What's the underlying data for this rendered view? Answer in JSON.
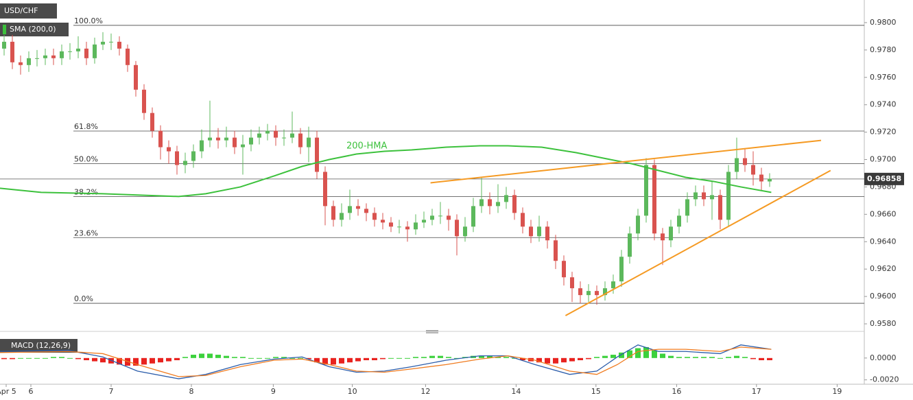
{
  "chart_data": {
    "type": "candlestick",
    "title": "USD/CHF",
    "indicator_label": "SMA (200,0)",
    "up_color": "#5cb85c",
    "down_color": "#d9534f",
    "xlim": [
      -0.5,
      104.5
    ],
    "xticks": [
      {
        "value": 0.25,
        "label": "Apr 5"
      },
      {
        "value": 3.25,
        "label": "6"
      },
      {
        "value": 13,
        "label": "7"
      },
      {
        "value": 22.75,
        "label": "8"
      },
      {
        "value": 32.7,
        "label": "9"
      },
      {
        "value": 42.3,
        "label": "10"
      },
      {
        "value": 51.2,
        "label": "12"
      },
      {
        "value": 62.2,
        "label": "14"
      },
      {
        "value": 71.9,
        "label": "15"
      },
      {
        "value": 81.7,
        "label": "16"
      },
      {
        "value": 91.4,
        "label": "17"
      },
      {
        "value": 101.2,
        "label": "19"
      }
    ],
    "ylim": [
      0.9576,
      0.98165
    ],
    "yticks": [
      {
        "value": 0.958,
        "label": "0.9580"
      },
      {
        "value": 0.96,
        "label": "0.9600"
      },
      {
        "value": 0.962,
        "label": "0.9620"
      },
      {
        "value": 0.964,
        "label": "0.9640"
      },
      {
        "value": 0.966,
        "label": "0.9660"
      },
      {
        "value": 0.968,
        "label": "0.9680"
      },
      {
        "value": 0.97,
        "label": "0.9700"
      },
      {
        "value": 0.972,
        "label": "0.9720"
      },
      {
        "value": 0.974,
        "label": "0.9740"
      },
      {
        "value": 0.976,
        "label": "0.9760"
      },
      {
        "value": 0.978,
        "label": "0.9780"
      },
      {
        "value": 0.98,
        "label": "0.9800"
      }
    ],
    "last_price": 0.96858,
    "fib_levels": [
      {
        "label": "100.0%",
        "value": 0.9798
      },
      {
        "label": "61.8%",
        "value": 0.97208
      },
      {
        "label": "50.0%",
        "value": 0.9697
      },
      {
        "label": "38.2%",
        "value": 0.9673
      },
      {
        "label": "23.6%",
        "value": 0.9643
      },
      {
        "label": "0.0%",
        "value": 0.9595
      }
    ],
    "candles": [
      [
        0.9781,
        0.9791,
        0.9776,
        0.9786
      ],
      [
        0.9786,
        0.9791,
        0.9766,
        0.9771
      ],
      [
        0.9771,
        0.9776,
        0.9762,
        0.9769
      ],
      [
        0.9769,
        0.9779,
        0.9764,
        0.9774
      ],
      [
        0.9774,
        0.978,
        0.9768,
        0.9774
      ],
      [
        0.9774,
        0.9781,
        0.9769,
        0.9776
      ],
      [
        0.9776,
        0.9781,
        0.9769,
        0.9774
      ],
      [
        0.9774,
        0.9784,
        0.9769,
        0.9779
      ],
      [
        0.9779,
        0.9785,
        0.9773,
        0.9779
      ],
      [
        0.9779,
        0.979,
        0.9774,
        0.9781
      ],
      [
        0.9781,
        0.9786,
        0.9769,
        0.9774
      ],
      [
        0.9774,
        0.9789,
        0.977,
        0.9784
      ],
      [
        0.9784,
        0.9793,
        0.978,
        0.9786
      ],
      [
        0.9786,
        0.9792,
        0.978,
        0.9786
      ],
      [
        0.9786,
        0.979,
        0.9776,
        0.9781
      ],
      [
        0.9781,
        0.9784,
        0.9764,
        0.9769
      ],
      [
        0.9769,
        0.9772,
        0.9746,
        0.9751
      ],
      [
        0.9751,
        0.9755,
        0.9729,
        0.9734
      ],
      [
        0.9734,
        0.9738,
        0.9716,
        0.9721
      ],
      [
        0.9721,
        0.9725,
        0.97,
        0.9709
      ],
      [
        0.9709,
        0.9714,
        0.9697,
        0.9706
      ],
      [
        0.9706,
        0.971,
        0.9689,
        0.9696
      ],
      [
        0.9696,
        0.9705,
        0.969,
        0.9699
      ],
      [
        0.9699,
        0.9711,
        0.9694,
        0.9706
      ],
      [
        0.9706,
        0.9722,
        0.9701,
        0.9714
      ],
      [
        0.9714,
        0.9743,
        0.9709,
        0.9716
      ],
      [
        0.9716,
        0.9723,
        0.9708,
        0.9714
      ],
      [
        0.9714,
        0.9724,
        0.9709,
        0.9716
      ],
      [
        0.9716,
        0.9721,
        0.9704,
        0.9709
      ],
      [
        0.9709,
        0.9718,
        0.9689,
        0.9711
      ],
      [
        0.9711,
        0.9722,
        0.9706,
        0.9716
      ],
      [
        0.9716,
        0.9724,
        0.9711,
        0.9719
      ],
      [
        0.9719,
        0.9726,
        0.9714,
        0.9721
      ],
      [
        0.9721,
        0.9725,
        0.971,
        0.9716
      ],
      [
        0.9716,
        0.9722,
        0.971,
        0.9716
      ],
      [
        0.9716,
        0.9735,
        0.9712,
        0.9719
      ],
      [
        0.9719,
        0.9723,
        0.9704,
        0.9709
      ],
      [
        0.9709,
        0.9724,
        0.9698,
        0.9716
      ],
      [
        0.9716,
        0.9721,
        0.9686,
        0.9691
      ],
      [
        0.9691,
        0.9695,
        0.9652,
        0.9666
      ],
      [
        0.9666,
        0.967,
        0.9651,
        0.9656
      ],
      [
        0.9656,
        0.9668,
        0.9651,
        0.9661
      ],
      [
        0.9661,
        0.9678,
        0.9656,
        0.9666
      ],
      [
        0.9666,
        0.9671,
        0.9659,
        0.9664
      ],
      [
        0.9664,
        0.9668,
        0.9655,
        0.9661
      ],
      [
        0.9661,
        0.9665,
        0.9651,
        0.9656
      ],
      [
        0.9656,
        0.9661,
        0.9649,
        0.9654
      ],
      [
        0.9654,
        0.9658,
        0.9647,
        0.9651
      ],
      [
        0.9651,
        0.9656,
        0.9646,
        0.9651
      ],
      [
        0.9651,
        0.9655,
        0.964,
        0.9649
      ],
      [
        0.9649,
        0.966,
        0.9645,
        0.9654
      ],
      [
        0.9654,
        0.9662,
        0.965,
        0.9656
      ],
      [
        0.9656,
        0.9664,
        0.9652,
        0.9659
      ],
      [
        0.9659,
        0.9669,
        0.9653,
        0.9659
      ],
      [
        0.9659,
        0.9664,
        0.9648,
        0.9656
      ],
      [
        0.9656,
        0.966,
        0.963,
        0.9644
      ],
      [
        0.9644,
        0.9658,
        0.964,
        0.9651
      ],
      [
        0.9651,
        0.9672,
        0.9647,
        0.9666
      ],
      [
        0.9666,
        0.9687,
        0.9661,
        0.9671
      ],
      [
        0.9671,
        0.9676,
        0.966,
        0.9666
      ],
      [
        0.9666,
        0.9682,
        0.9661,
        0.9669
      ],
      [
        0.9669,
        0.968,
        0.9664,
        0.9674
      ],
      [
        0.9674,
        0.9678,
        0.9656,
        0.9661
      ],
      [
        0.9661,
        0.9665,
        0.9646,
        0.9651
      ],
      [
        0.9651,
        0.9656,
        0.9639,
        0.9644
      ],
      [
        0.9644,
        0.9659,
        0.964,
        0.9651
      ],
      [
        0.9651,
        0.9655,
        0.9635,
        0.9641
      ],
      [
        0.9641,
        0.9645,
        0.962,
        0.9626
      ],
      [
        0.9626,
        0.963,
        0.9608,
        0.9614
      ],
      [
        0.9614,
        0.9618,
        0.9596,
        0.9606
      ],
      [
        0.9606,
        0.9611,
        0.9595,
        0.9601
      ],
      [
        0.9601,
        0.9609,
        0.9596,
        0.9604
      ],
      [
        0.9604,
        0.9608,
        0.9594,
        0.9601
      ],
      [
        0.9601,
        0.9611,
        0.9597,
        0.9606
      ],
      [
        0.9606,
        0.9616,
        0.9602,
        0.9611
      ],
      [
        0.9611,
        0.9634,
        0.9607,
        0.9629
      ],
      [
        0.9629,
        0.9651,
        0.9624,
        0.9646
      ],
      [
        0.9646,
        0.9664,
        0.9641,
        0.9659
      ],
      [
        0.9659,
        0.9701,
        0.9654,
        0.9696
      ],
      [
        0.9696,
        0.97,
        0.9641,
        0.9646
      ],
      [
        0.9646,
        0.965,
        0.9623,
        0.9641
      ],
      [
        0.9641,
        0.9656,
        0.9636,
        0.9651
      ],
      [
        0.9651,
        0.9664,
        0.9646,
        0.9659
      ],
      [
        0.9659,
        0.9676,
        0.9654,
        0.9671
      ],
      [
        0.9671,
        0.9681,
        0.9666,
        0.9676
      ],
      [
        0.9676,
        0.9681,
        0.9666,
        0.9671
      ],
      [
        0.9671,
        0.9684,
        0.9656,
        0.9674
      ],
      [
        0.9674,
        0.9678,
        0.9649,
        0.9656
      ],
      [
        0.9656,
        0.9696,
        0.9651,
        0.9691
      ],
      [
        0.9691,
        0.9716,
        0.9686,
        0.9701
      ],
      [
        0.9701,
        0.9708,
        0.9691,
        0.9696
      ],
      [
        0.9696,
        0.9706,
        0.9681,
        0.9689
      ],
      [
        0.9689,
        0.9694,
        0.9677,
        0.9684
      ],
      [
        0.9684,
        0.969,
        0.968,
        0.9686
      ]
    ],
    "hma": {
      "name": "200-HMA",
      "color": "#3cc13c",
      "x": [
        -0.5,
        4.5,
        12,
        21.2,
        24.5,
        28.7,
        32.8,
        36.2,
        39.5,
        42.8,
        46.2,
        49.5,
        53.7,
        57.8,
        61.2,
        65.3,
        69.5,
        72.8,
        76.2,
        79.5,
        82.8,
        86.2,
        89.5,
        93.2
      ],
      "values": [
        0.9679,
        0.9676,
        0.9675,
        0.9673,
        0.9675,
        0.968,
        0.9688,
        0.9695,
        0.97,
        0.9704,
        0.9706,
        0.9707,
        0.9709,
        0.971,
        0.971,
        0.9709,
        0.9705,
        0.9701,
        0.9697,
        0.9692,
        0.9687,
        0.9684,
        0.968,
        0.9676
      ]
    },
    "trendline_color": "#f59a23",
    "trendlines": [
      {
        "x": [
          51.8,
          99.25
        ],
        "values": [
          0.9683,
          0.9714
        ]
      },
      {
        "x": [
          68.2,
          100.4
        ],
        "values": [
          0.9586,
          0.9692
        ]
      }
    ],
    "macd": {
      "title": "MACD (12,26,9)",
      "ylim": [
        -0.0024,
        0.002
      ],
      "yticks": [
        {
          "value": 0,
          "label": "0.0000"
        },
        {
          "value": -0.002,
          "label": "-0.0020"
        }
      ],
      "histogram": [
        -0.0001,
        -0.0001,
        0,
        0,
        0,
        0,
        0.0001,
        0.0001,
        0,
        -0.0001,
        -0.0002,
        -0.0003,
        -0.0004,
        -0.0005,
        -0.0006,
        -0.0007,
        -0.0007,
        -0.0006,
        -0.0005,
        -0.0004,
        -0.0003,
        -0.0002,
        0.0001,
        0.0003,
        0.0004,
        0.0004,
        0.0003,
        0.0002,
        0.0001,
        0.0001,
        0,
        0,
        0,
        0.0001,
        0.0001,
        0,
        0,
        -0.0001,
        -0.0004,
        -0.0006,
        -0.0006,
        -0.0005,
        -0.0004,
        -0.0003,
        -0.0002,
        -0.0002,
        -0.0001,
        0,
        0,
        0,
        0.0001,
        0.0001,
        0.0002,
        0.0002,
        0.0001,
        0,
        0.0001,
        0.0002,
        0.0002,
        0.0002,
        0.0001,
        0.0001,
        0,
        -0.0002,
        -0.0003,
        -0.0004,
        -0.0005,
        -0.0005,
        -0.0004,
        -0.0003,
        -0.0002,
        -0.0001,
        0.0001,
        0.0002,
        0.0003,
        0.0005,
        0.0007,
        0.0009,
        0.001,
        0.0007,
        0.0004,
        0.0002,
        0.0001,
        0.0001,
        0.0001,
        0.0001,
        0.0001,
        0,
        0.0001,
        0.0002,
        0.0001,
        -0.0001,
        -0.0002,
        -0.0002
      ],
      "x": [
        -0.5,
        7.8,
        12,
        16.2,
        21.2,
        24.5,
        28.7,
        32.8,
        36.2,
        39.5,
        42.8,
        46.2,
        49.5,
        53.7,
        57.8,
        61.2,
        64.5,
        68.7,
        72,
        74.5,
        77,
        79.5,
        82.8,
        87,
        89.5,
        93.2
      ],
      "macd_color": "#2a5caa",
      "macd_values": [
        0.0006,
        0.0007,
        0.0001,
        -0.0012,
        -0.0019,
        -0.0015,
        -0.0006,
        -0.0001,
        0.0001,
        -0.0008,
        -0.0013,
        -0.0012,
        -0.0008,
        -0.0002,
        0.0002,
        0.0002,
        -0.0006,
        -0.0015,
        -0.0012,
        0.0001,
        0.0012,
        0.0006,
        0.0006,
        0.0004,
        0.0012,
        0.0008
      ],
      "signal_color": "#f07b1f",
      "signal_values": [
        0.0005,
        0.0006,
        0.0004,
        -0.0006,
        -0.0017,
        -0.0016,
        -0.0008,
        -0.0002,
        -0.0001,
        -0.0006,
        -0.0012,
        -0.0013,
        -0.001,
        -0.0006,
        -0.0001,
        0.0002,
        -0.0002,
        -0.0012,
        -0.0015,
        -0.0006,
        0.0006,
        0.0008,
        0.0008,
        0.0006,
        0.001,
        0.0008
      ]
    }
  }
}
